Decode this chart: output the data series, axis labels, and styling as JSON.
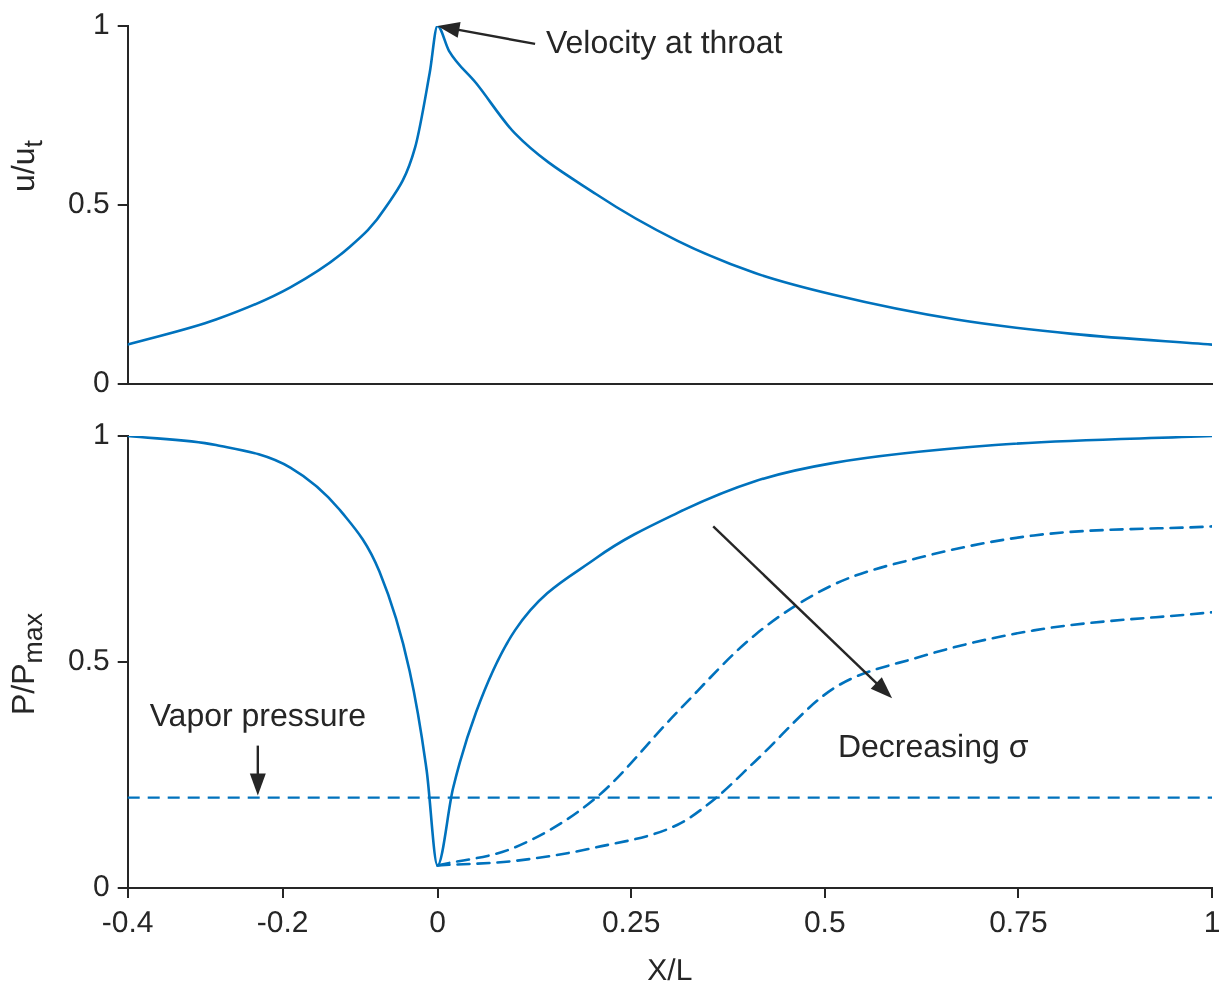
{
  "chart_data": [
    {
      "type": "line",
      "ylabel": "u/u$_{t}$",
      "xlim": [
        -0.4,
        1
      ],
      "ylim": [
        0,
        1
      ],
      "yticks": [
        0,
        0.5,
        1
      ],
      "tick_labels": "y",
      "series": [
        {
          "color": "#0072bd",
          "x": [
            -0.4,
            -0.286,
            -0.19,
            -0.115,
            -0.068,
            -0.029,
            -0.01,
            0,
            0.015,
            0.05,
            0.1,
            0.205,
            0.31,
            0.41,
            0.51,
            0.67,
            0.82,
            1
          ],
          "values": [
            0.11,
            0.18,
            0.27,
            0.38,
            0.49,
            0.66,
            0.87,
            1,
            0.93,
            0.84,
            0.7,
            0.53,
            0.4,
            0.31,
            0.25,
            0.18,
            0.14,
            0.11
          ]
        }
      ],
      "annotations": [
        {
          "text": "Velocity at throat",
          "x": 0,
          "y": 1
        }
      ]
    },
    {
      "type": "line",
      "xlabel": "X/L",
      "ylabel": "P/P$_{max}$",
      "xlim": [
        -0.4,
        1
      ],
      "xticks": [
        -0.4,
        -0.2,
        0,
        0.25,
        0.5,
        0.75,
        1
      ],
      "ylim": [
        0,
        1
      ],
      "yticks": [
        0,
        0.5,
        1
      ],
      "series": [
        {
          "color": "#0072bd",
          "line_style": "solid",
          "x": [
            -0.4,
            -0.286,
            -0.19,
            -0.123,
            -0.075,
            -0.036,
            -0.014,
            0,
            0.02,
            0.05,
            0.1,
            0.205,
            0.31,
            0.41,
            0.51,
            0.72,
            1
          ],
          "values": [
            1,
            0.98,
            0.93,
            0.83,
            0.7,
            0.48,
            0.26,
            0.05,
            0.22,
            0.39,
            0.57,
            0.73,
            0.83,
            0.9,
            0.94,
            0.98,
            1
          ]
        },
        {
          "color": "#0072bd",
          "line_style": "dashed",
          "x": [
            0,
            0.1,
            0.205,
            0.31,
            0.41,
            0.51,
            0.62,
            0.77,
            1
          ],
          "values": [
            0.05,
            0.09,
            0.2,
            0.39,
            0.56,
            0.67,
            0.73,
            0.78,
            0.8
          ]
        },
        {
          "color": "#0072bd",
          "line_style": "dashed",
          "x": [
            0,
            0.1,
            0.205,
            0.31,
            0.36,
            0.41,
            0.51,
            0.62,
            0.77,
            1
          ],
          "values": [
            0.05,
            0.06,
            0.09,
            0.14,
            0.2,
            0.28,
            0.44,
            0.51,
            0.57,
            0.61
          ]
        }
      ],
      "ref_lines": [
        {
          "axis": "y",
          "value": 0.2,
          "label": "Vapor pressure",
          "color": "#0072bd",
          "line_style": "dashed"
        }
      ],
      "annotations": [
        "Decreasing σ"
      ]
    }
  ]
}
